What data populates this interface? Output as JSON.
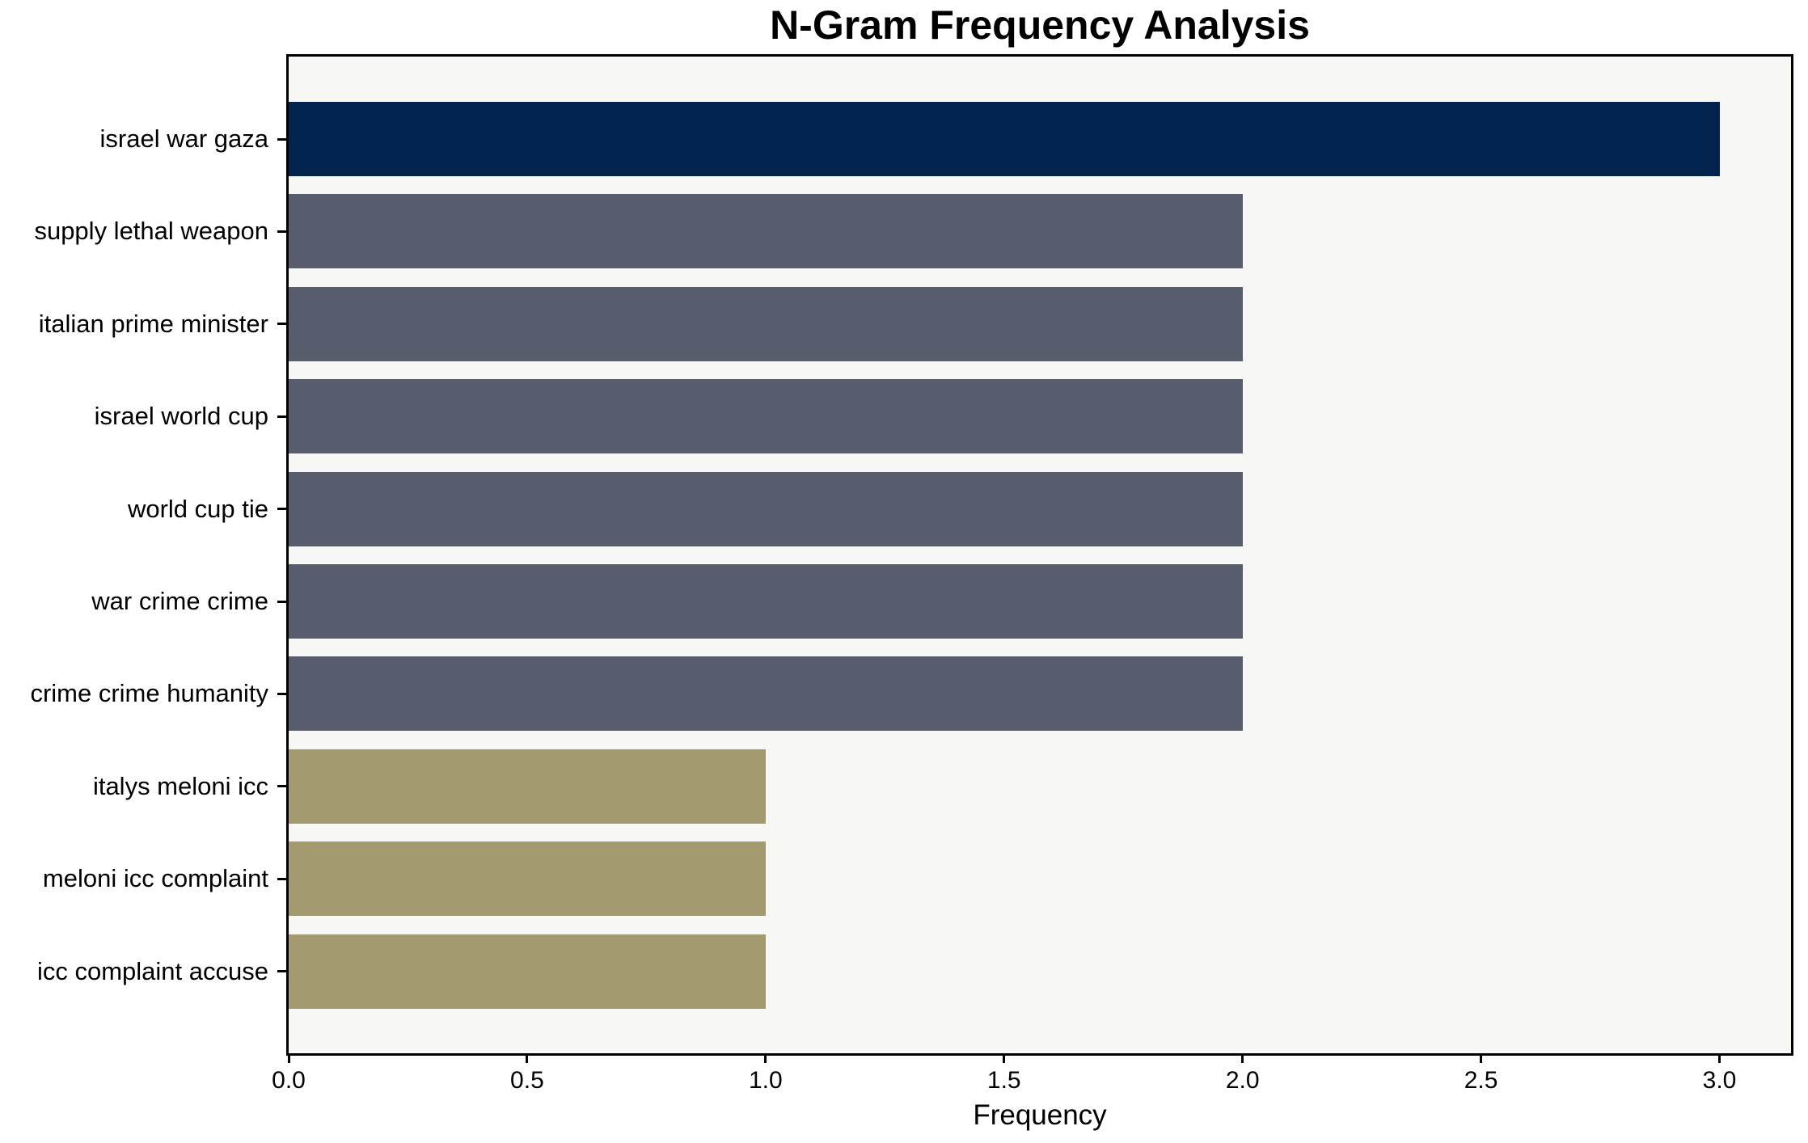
{
  "chart_data": {
    "type": "bar",
    "orientation": "horizontal",
    "title": "N-Gram Frequency Analysis",
    "xlabel": "Frequency",
    "ylabel": "",
    "categories": [
      "israel war gaza",
      "supply lethal weapon",
      "italian prime minister",
      "israel world cup",
      "world cup tie",
      "war crime crime",
      "crime crime humanity",
      "italys meloni icc",
      "meloni icc complaint",
      "icc complaint accuse"
    ],
    "values": [
      3,
      2,
      2,
      2,
      2,
      2,
      2,
      1,
      1,
      1
    ],
    "bar_colors": [
      "#02234E",
      "#575D6C",
      "#575D6C",
      "#575D6C",
      "#575D6C",
      "#575D6C",
      "#575D6C",
      "#A49A70",
      "#A49A70",
      "#A49A70"
    ],
    "x_ticks": [
      0.0,
      0.5,
      1.0,
      1.5,
      2.0,
      2.5,
      3.0
    ],
    "x_tick_labels": [
      "0.0",
      "0.5",
      "1.0",
      "1.5",
      "2.0",
      "2.5",
      "3.0"
    ],
    "xlim": [
      0,
      3.15
    ],
    "grid": false,
    "legend": "none",
    "plot_background": "#F7F7F6",
    "figure_background": "#FFFFFF",
    "frame_color": "#000000"
  }
}
